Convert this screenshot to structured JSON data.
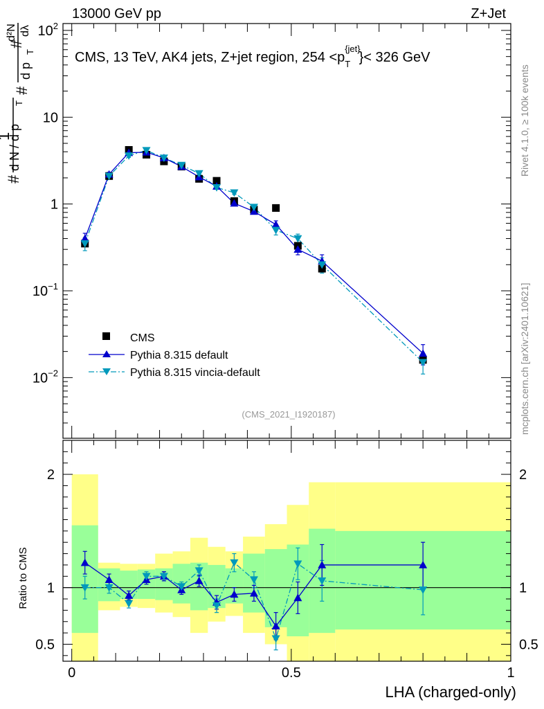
{
  "header": {
    "left": "13000 GeV pp",
    "right": "Z+Jet"
  },
  "main_title": {
    "prefix": "CMS, 13 TeV, AK4 jets, Z+jet region, 254 <p",
    "sup": "{jet}",
    "sub": "T",
    "suffix": "}< 326 GeV"
  },
  "ylabel": {
    "hash": "#",
    "one": "1",
    "den": "d N / d p",
    "den_sub": "T",
    "inner_hash": "#",
    "d2n": "d²N",
    "dpt": "d p",
    "dpt_sub": "T",
    "dlambda": "dλ"
  },
  "side_labels": {
    "rivet": "Rivet 4.1.0, ≥ 100k events",
    "mcplots": "mcplots.cern.ch [arXiv:2401.10621]"
  },
  "analysis_id": "(CMS_2021_I1920187)",
  "ratio_ylabel": "Ratio to CMS",
  "xlabel": "LHA (charged-only)",
  "colors": {
    "data": "#000000",
    "default": "#0000cc",
    "vincia": "#0099bb",
    "band_inner": "#99ff99",
    "band_outer": "#ffff88"
  },
  "chart_data": {
    "type": "scatter",
    "x_ticks": [
      "0",
      "0.5",
      "1"
    ],
    "x_tick_values": [
      0,
      0.5,
      1
    ],
    "xlim": [
      -0.02,
      1.0
    ],
    "main_yaxis": {
      "scale": "log",
      "ylim": [
        0.002,
        120
      ],
      "tick_labels": [
        {
          "value": 0.01,
          "base": "10",
          "exp": "−2"
        },
        {
          "value": 0.1,
          "base": "10",
          "exp": "−1"
        },
        {
          "value": 1,
          "base": "1",
          "exp": ""
        },
        {
          "value": 10,
          "base": "10",
          "exp": ""
        },
        {
          "value": 100,
          "base": "10",
          "exp": "2"
        }
      ]
    },
    "ratio_yaxis": {
      "ylim": [
        0.35,
        2.3
      ],
      "tick_labels": [
        "0.5",
        "1",
        "2"
      ],
      "tick_values": [
        0.5,
        1,
        2
      ]
    },
    "bin_edges": [
      0,
      0.06,
      0.11,
      0.15,
      0.19,
      0.23,
      0.27,
      0.31,
      0.35,
      0.39,
      0.44,
      0.49,
      0.54,
      0.6,
      1.0
    ],
    "series": [
      {
        "name": "CMS",
        "marker": "square",
        "x": [
          0.03,
          0.085,
          0.13,
          0.17,
          0.21,
          0.25,
          0.29,
          0.33,
          0.37,
          0.415,
          0.465,
          0.515,
          0.57,
          0.8
        ],
        "y": [
          0.35,
          2.1,
          4.2,
          3.7,
          3.1,
          2.7,
          1.95,
          1.85,
          1.08,
          0.86,
          0.9,
          0.33,
          0.18,
          0.016
        ]
      },
      {
        "name": "Pythia 8.315 default",
        "marker": "triangle-up",
        "line": "solid",
        "x": [
          0.03,
          0.085,
          0.13,
          0.17,
          0.21,
          0.25,
          0.29,
          0.33,
          0.37,
          0.415,
          0.465,
          0.515,
          0.57,
          0.8
        ],
        "y": [
          0.4,
          2.2,
          3.9,
          3.95,
          3.4,
          2.7,
          2.05,
          1.6,
          1.02,
          0.82,
          0.58,
          0.3,
          0.22,
          0.019
        ],
        "err": [
          0.06,
          0.12,
          0.15,
          0.15,
          0.14,
          0.11,
          0.08,
          0.07,
          0.06,
          0.05,
          0.06,
          0.04,
          0.04,
          0.005
        ]
      },
      {
        "name": "Pythia 8.315 vincia-default",
        "marker": "triangle-down",
        "line": "dashdot",
        "x": [
          0.03,
          0.085,
          0.13,
          0.17,
          0.21,
          0.25,
          0.29,
          0.33,
          0.37,
          0.415,
          0.465,
          0.515,
          0.57,
          0.8
        ],
        "y": [
          0.35,
          2.1,
          3.6,
          4.15,
          3.4,
          2.8,
          2.25,
          1.55,
          1.35,
          0.92,
          0.5,
          0.4,
          0.2,
          0.015
        ],
        "err": [
          0.06,
          0.12,
          0.15,
          0.15,
          0.14,
          0.11,
          0.08,
          0.07,
          0.06,
          0.05,
          0.06,
          0.05,
          0.04,
          0.004
        ]
      }
    ],
    "ratio": {
      "default": {
        "y": [
          1.22,
          1.07,
          0.93,
          1.07,
          1.1,
          0.98,
          1.06,
          0.87,
          0.94,
          0.95,
          0.66,
          0.91,
          1.2,
          1.2
        ],
        "err": [
          0.1,
          0.05,
          0.04,
          0.04,
          0.04,
          0.04,
          0.05,
          0.06,
          0.06,
          0.07,
          0.12,
          0.14,
          0.18,
          0.2
        ]
      },
      "vincia": {
        "y": [
          1.0,
          1.0,
          0.86,
          1.1,
          1.1,
          1.01,
          1.15,
          0.84,
          1.22,
          1.07,
          0.55,
          1.21,
          1.06,
          0.98
        ],
        "err": [
          0.1,
          0.05,
          0.04,
          0.04,
          0.04,
          0.04,
          0.05,
          0.06,
          0.08,
          0.07,
          0.1,
          0.14,
          0.18,
          0.22
        ]
      },
      "band_inner": [
        [
          0.6,
          1.55
        ],
        [
          0.88,
          1.17
        ],
        [
          0.9,
          1.15
        ],
        [
          0.9,
          1.16
        ],
        [
          0.89,
          1.17
        ],
        [
          0.86,
          1.21
        ],
        [
          0.8,
          1.22
        ],
        [
          0.82,
          1.2
        ],
        [
          0.86,
          1.17
        ],
        [
          0.78,
          1.3
        ],
        [
          0.65,
          1.34
        ],
        [
          0.57,
          1.38
        ],
        [
          0.6,
          1.52
        ],
        [
          0.63,
          1.5
        ]
      ],
      "band_outer": [
        [
          0.35,
          2.0
        ],
        [
          0.8,
          1.22
        ],
        [
          0.83,
          1.21
        ],
        [
          0.82,
          1.21
        ],
        [
          0.78,
          1.3
        ],
        [
          0.74,
          1.32
        ],
        [
          0.6,
          1.44
        ],
        [
          0.7,
          1.36
        ],
        [
          0.75,
          1.32
        ],
        [
          0.6,
          1.45
        ],
        [
          0.5,
          1.56
        ],
        [
          0.35,
          1.73
        ],
        [
          0.35,
          1.93
        ],
        [
          0.35,
          1.93
        ]
      ]
    }
  }
}
